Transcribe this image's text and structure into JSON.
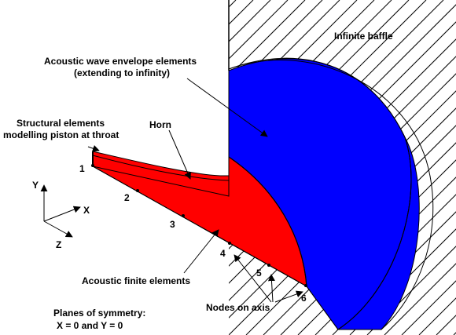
{
  "colors": {
    "horn": "#ff0000",
    "envelope": "#0000ff",
    "outline": "#000000",
    "baffle_hatch": "#000000",
    "background": "#ffffff"
  },
  "labels": {
    "infinite_baffle": "Infinite baffle",
    "envelope_line1": "Acoustic wave envelope elements",
    "envelope_line2": "(extending to infinity)",
    "structural_line1": "Structural elements",
    "structural_line2": "modelling piston at throat",
    "horn": "Horn",
    "acoustic_fe": "Acoustic finite elements",
    "nodes_on_axis": "Nodes on axis",
    "planes_line1": "Planes of symmetry:",
    "planes_line2": "X = 0 and Y = 0"
  },
  "axes": {
    "x": "X",
    "y": "Y",
    "z": "Z"
  },
  "nodes": [
    "1",
    "2",
    "3",
    "4",
    "5",
    "6"
  ]
}
